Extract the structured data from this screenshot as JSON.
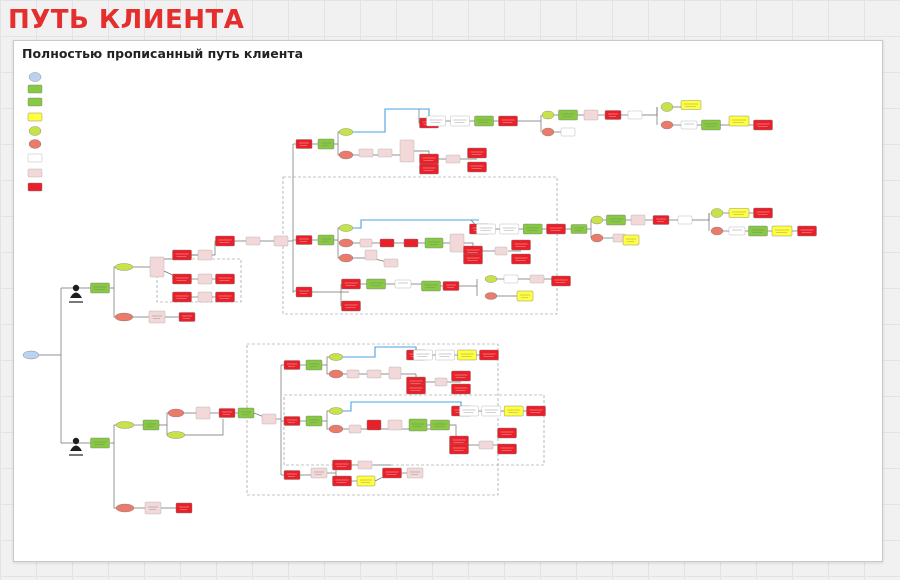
{
  "page": {
    "title": "ПУТЬ КЛИЕНТА"
  },
  "board": {
    "title": "Полностью прописанный путь клиента"
  },
  "colors": {
    "start": "#bcd3ef",
    "decision": "#c6e34a",
    "fail": "#ea7a6a",
    "action": "#88c943",
    "event": "#ffff3f",
    "stop": "#e8202a",
    "note": "#f2d8d8",
    "edge": "#6f6f6f",
    "highlight": "#4aa3df"
  },
  "icons": [
    "male-client-icon",
    "female-client-icon"
  ]
}
